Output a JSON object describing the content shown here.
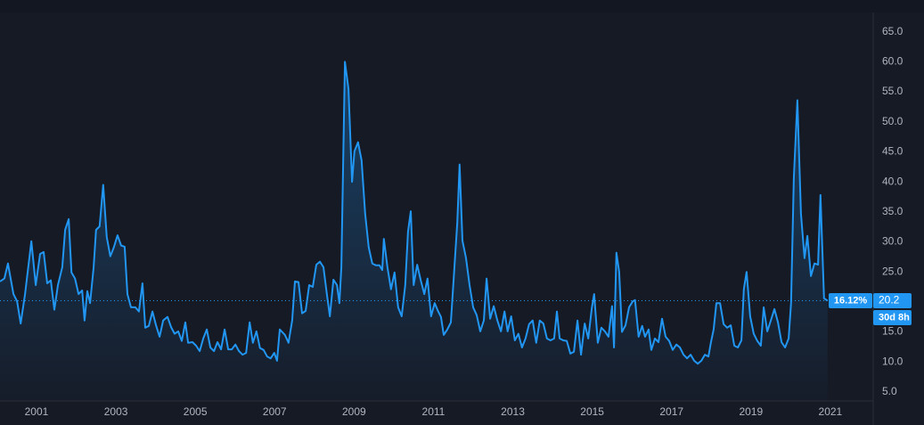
{
  "chart_data": {
    "type": "area",
    "xlim": [
      2000.08,
      2022.08
    ],
    "ylim": [
      3.5,
      70.3
    ],
    "xticks": [
      2001,
      2003,
      2005,
      2007,
      2009,
      2011,
      2013,
      2015,
      2017,
      2019,
      2021
    ],
    "yticks": [
      {
        "value": 5,
        "label": "5.0"
      },
      {
        "value": 10,
        "label": "10.0"
      },
      {
        "value": 15,
        "label": "15.0"
      },
      {
        "value": 20,
        "label": "20.0"
      },
      {
        "value": 25,
        "label": "25.0"
      },
      {
        "value": 30,
        "label": "30.0"
      },
      {
        "value": 35,
        "label": "35.0"
      },
      {
        "value": 40,
        "label": "40.0"
      },
      {
        "value": 45,
        "label": "45.0"
      },
      {
        "value": 50,
        "label": "50.0"
      },
      {
        "value": 55,
        "label": "55.0"
      },
      {
        "value": 60,
        "label": "60.0"
      },
      {
        "value": 65,
        "label": "65.0"
      }
    ],
    "grid": false,
    "series": [
      {
        "color": "#2196f3",
        "x": [
          2000.08,
          2000.19,
          2000.28,
          2000.42,
          2000.51,
          2000.6,
          2000.71,
          2000.87,
          2000.98,
          2001.09,
          2001.18,
          2001.27,
          2001.36,
          2001.45,
          2001.54,
          2001.65,
          2001.72,
          2001.81,
          2001.88,
          2001.97,
          2002.06,
          2002.15,
          2002.21,
          2002.28,
          2002.35,
          2002.44,
          2002.5,
          2002.59,
          2002.68,
          2002.77,
          2002.86,
          2002.95,
          2003.04,
          2003.13,
          2003.22,
          2003.29,
          2003.38,
          2003.49,
          2003.58,
          2003.67,
          2003.74,
          2003.83,
          2003.92,
          2004.01,
          2004.1,
          2004.19,
          2004.3,
          2004.39,
          2004.48,
          2004.57,
          2004.66,
          2004.75,
          2004.82,
          2004.93,
          2005.02,
          2005.11,
          2005.2,
          2005.29,
          2005.38,
          2005.47,
          2005.56,
          2005.65,
          2005.74,
          2005.83,
          2005.92,
          2006.01,
          2006.1,
          2006.19,
          2006.28,
          2006.37,
          2006.45,
          2006.54,
          2006.63,
          2006.72,
          2006.81,
          2006.9,
          2006.99,
          2007.06,
          2007.13,
          2007.26,
          2007.35,
          2007.44,
          2007.51,
          2007.6,
          2007.69,
          2007.78,
          2007.87,
          2007.96,
          2008.05,
          2008.14,
          2008.23,
          2008.32,
          2008.39,
          2008.48,
          2008.57,
          2008.63,
          2008.68,
          2008.77,
          2008.86,
          2008.95,
          2009.01,
          2009.1,
          2009.19,
          2009.28,
          2009.37,
          2009.46,
          2009.55,
          2009.64,
          2009.71,
          2009.75,
          2009.84,
          2009.93,
          2010.02,
          2010.11,
          2010.2,
          2010.29,
          2010.36,
          2010.43,
          2010.5,
          2010.59,
          2010.68,
          2010.77,
          2010.85,
          2010.94,
          2011.03,
          2011.12,
          2011.19,
          2011.26,
          2011.35,
          2011.44,
          2011.53,
          2011.6,
          2011.66,
          2011.73,
          2011.82,
          2011.91,
          2012.0,
          2012.09,
          2012.18,
          2012.27,
          2012.34,
          2012.43,
          2012.52,
          2012.61,
          2012.7,
          2012.79,
          2012.87,
          2012.96,
          2013.05,
          2013.14,
          2013.23,
          2013.32,
          2013.41,
          2013.5,
          2013.59,
          2013.68,
          2013.77,
          2013.86,
          2013.95,
          2014.04,
          2014.11,
          2014.18,
          2014.27,
          2014.36,
          2014.45,
          2014.54,
          2014.63,
          2014.72,
          2014.81,
          2014.9,
          2014.99,
          2015.05,
          2015.14,
          2015.23,
          2015.32,
          2015.41,
          2015.5,
          2015.55,
          2015.61,
          2015.68,
          2015.75,
          2015.84,
          2015.93,
          2016.02,
          2016.08,
          2016.17,
          2016.26,
          2016.33,
          2016.42,
          2016.49,
          2016.58,
          2016.67,
          2016.76,
          2016.85,
          2016.94,
          2017.03,
          2017.12,
          2017.21,
          2017.3,
          2017.39,
          2017.48,
          2017.57,
          2017.66,
          2017.75,
          2017.84,
          2017.93,
          2017.99,
          2018.06,
          2018.13,
          2018.22,
          2018.31,
          2018.4,
          2018.49,
          2018.58,
          2018.67,
          2018.76,
          2018.82,
          2018.89,
          2018.98,
          2019.07,
          2019.16,
          2019.25,
          2019.32,
          2019.41,
          2019.5,
          2019.59,
          2019.68,
          2019.77,
          2019.86,
          2019.95,
          2020.01,
          2020.08,
          2020.17,
          2020.26,
          2020.35,
          2020.42,
          2020.51,
          2020.6,
          2020.69,
          2020.75,
          2020.84,
          2020.93
        ],
        "values": [
          23.4,
          23.9,
          26.4,
          21.3,
          20.1,
          16.4,
          21.3,
          30.1,
          22.8,
          28.0,
          28.3,
          23.1,
          23.6,
          18.7,
          22.8,
          25.8,
          32.0,
          33.8,
          24.9,
          23.9,
          21.3,
          21.9,
          16.9,
          21.8,
          19.8,
          25.8,
          32.0,
          32.6,
          39.5,
          30.8,
          27.6,
          29.1,
          31.1,
          29.4,
          29.2,
          21.3,
          19.1,
          19.1,
          18.4,
          23.1,
          15.7,
          16.0,
          18.4,
          16.1,
          14.2,
          16.9,
          17.5,
          15.8,
          14.7,
          15.1,
          13.5,
          16.6,
          13.2,
          13.3,
          12.7,
          11.8,
          13.9,
          15.4,
          12.4,
          11.8,
          13.3,
          12.1,
          15.4,
          12.1,
          12.1,
          12.9,
          11.8,
          11.2,
          11.5,
          16.6,
          13.2,
          15.1,
          12.3,
          12.0,
          10.9,
          10.6,
          11.5,
          10.2,
          15.4,
          14.5,
          13.2,
          16.9,
          23.4,
          23.3,
          18.1,
          18.5,
          22.8,
          22.5,
          26.2,
          26.7,
          25.8,
          21.0,
          17.6,
          23.7,
          22.8,
          19.8,
          25.8,
          60.0,
          55.5,
          40.0,
          45.1,
          46.6,
          43.6,
          34.7,
          29.1,
          26.4,
          26.1,
          26.1,
          25.3,
          30.5,
          25.8,
          22.1,
          24.9,
          19.1,
          17.6,
          22.8,
          31.7,
          35.1,
          22.8,
          26.2,
          23.6,
          21.3,
          23.9,
          17.6,
          19.8,
          18.4,
          17.5,
          14.5,
          15.4,
          16.6,
          25.8,
          33.2,
          42.9,
          30.2,
          27.3,
          22.8,
          19.1,
          17.8,
          15.1,
          16.9,
          23.9,
          17.2,
          19.3,
          16.9,
          15.1,
          18.4,
          15.1,
          17.6,
          13.6,
          14.7,
          12.4,
          13.9,
          16.3,
          16.9,
          13.2,
          16.9,
          16.4,
          13.9,
          13.6,
          13.9,
          18.4,
          13.9,
          13.6,
          13.5,
          11.4,
          11.7,
          16.9,
          11.2,
          16.4,
          13.9,
          19.0,
          21.3,
          13.2,
          15.7,
          15.1,
          14.2,
          19.3,
          12.4,
          28.2,
          25.0,
          15.0,
          16.1,
          19.1,
          20.1,
          20.3,
          14.2,
          16.0,
          14.2,
          15.4,
          12.0,
          13.9,
          13.3,
          17.2,
          14.2,
          13.5,
          12.0,
          12.9,
          12.4,
          11.2,
          10.6,
          11.2,
          10.2,
          9.7,
          10.2,
          11.2,
          10.9,
          13.2,
          15.4,
          19.8,
          19.8,
          16.3,
          15.7,
          16.1,
          12.7,
          12.4,
          13.6,
          22.1,
          25.0,
          17.6,
          14.7,
          13.5,
          12.7,
          19.1,
          15.1,
          16.9,
          18.8,
          16.6,
          13.3,
          12.4,
          13.9,
          19.8,
          40.6,
          53.6,
          34.7,
          27.3,
          31.0,
          24.3,
          26.4,
          26.2,
          37.8,
          20.6,
          20.2
        ]
      }
    ],
    "last_value": 20.2,
    "change_label": "16.12%",
    "countdown": "30d 8h"
  }
}
